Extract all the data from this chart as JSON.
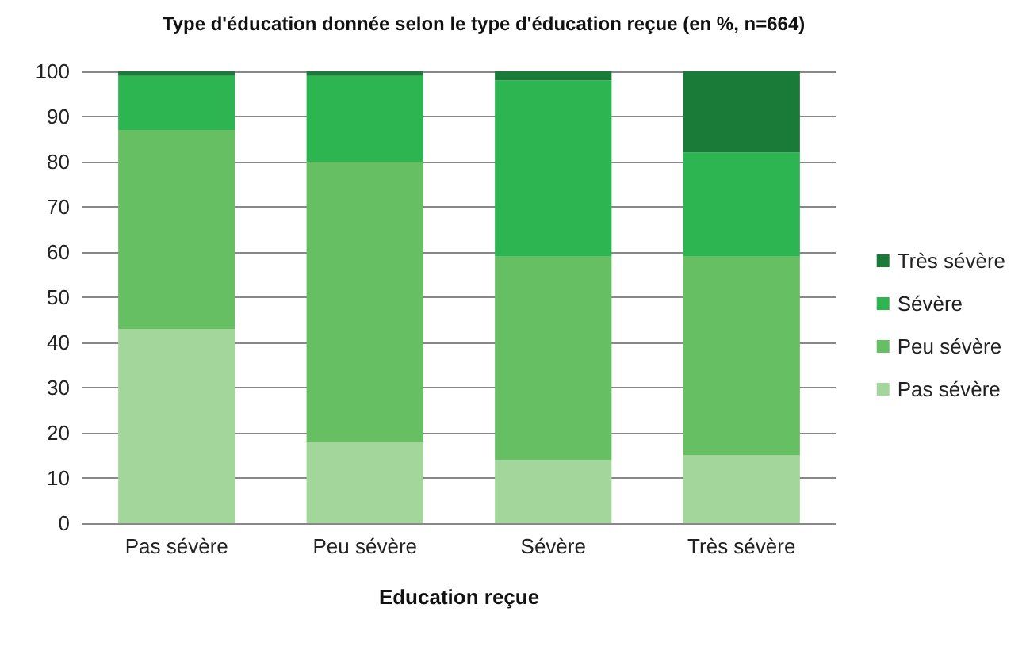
{
  "chart_data": {
    "type": "bar",
    "title": "Type d'éducation donnée selon le type d'éducation reçue (en %, n=664)",
    "xlabel": "Education reçue",
    "categories": [
      "Pas sévère",
      "Peu sévère",
      "Sévère",
      "Très sévère"
    ],
    "series": [
      {
        "name": "Pas sévère",
        "color": "#a3d69b",
        "values": [
          43,
          18,
          14,
          15
        ]
      },
      {
        "name": "Peu sévère",
        "color": "#66bf63",
        "values": [
          44,
          62,
          45,
          44
        ]
      },
      {
        "name": "Sévère",
        "color": "#2db552",
        "values": [
          12,
          19,
          39,
          23
        ]
      },
      {
        "name": "Très sévère",
        "color": "#1a7a38",
        "values": [
          1,
          1,
          2,
          18
        ]
      }
    ],
    "stacked": true,
    "ylim": [
      0,
      100
    ],
    "yticks": [
      0,
      10,
      20,
      30,
      40,
      50,
      60,
      70,
      80,
      90,
      100
    ],
    "grid": "y",
    "legend": "right"
  }
}
